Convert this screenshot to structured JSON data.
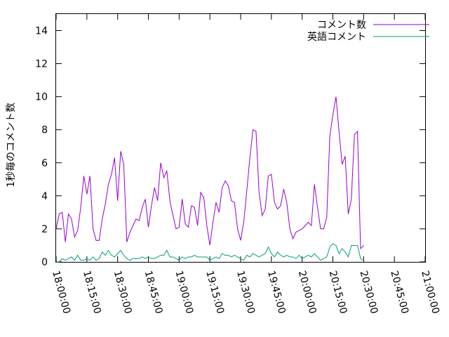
{
  "chart_data": {
    "type": "line",
    "ylabel": "1秒毎のコメント数",
    "ylim": [
      0,
      15
    ],
    "yticks": [
      0,
      2,
      4,
      6,
      8,
      10,
      12,
      14
    ],
    "xlim": [
      "18:00:00",
      "21:00:00"
    ],
    "xticks": [
      "18:00:00",
      "18:15:00",
      "18:30:00",
      "18:45:00",
      "19:00:00",
      "19:15:00",
      "19:30:00",
      "19:45:00",
      "20:00:00",
      "20:15:00",
      "20:30:00",
      "20:45:00",
      "21:00:00"
    ],
    "legend_position": "top-right",
    "grid": false,
    "x_step_minutes": 1.5,
    "series": [
      {
        "name": "コメント数",
        "color": "#9400d3",
        "values": [
          2.0,
          2.9,
          3.0,
          1.2,
          2.9,
          2.6,
          1.5,
          1.9,
          3.3,
          5.2,
          4.1,
          5.2,
          2.0,
          1.3,
          1.3,
          2.6,
          3.5,
          4.7,
          5.3,
          6.3,
          3.7,
          6.7,
          5.9,
          1.2,
          1.8,
          2.2,
          2.6,
          2.5,
          3.3,
          3.8,
          2.1,
          3.4,
          4.5,
          3.7,
          6.0,
          5.1,
          5.5,
          3.7,
          2.8,
          2.0,
          2.1,
          3.8,
          2.3,
          2.1,
          3.4,
          3.3,
          2.2,
          4.2,
          3.9,
          2.2,
          1.0,
          2.4,
          3.6,
          3.0,
          4.5,
          4.9,
          4.6,
          3.7,
          3.6,
          2.0,
          1.3,
          2.4,
          4.3,
          6.3,
          8.0,
          7.9,
          4.2,
          2.8,
          3.2,
          5.2,
          5.3,
          3.6,
          3.2,
          3.4,
          4.4,
          3.6,
          2.0,
          1.4,
          1.8,
          1.9,
          2.0,
          2.2,
          2.4,
          2.2,
          4.7,
          3.3,
          2.0,
          2.0,
          2.7,
          7.6,
          8.9,
          10.0,
          7.9,
          5.9,
          6.4,
          2.9,
          3.8,
          7.7,
          7.9,
          0.8,
          1.0
        ]
      },
      {
        "name": "英語コメント",
        "color": "#009e73",
        "values": [
          0.0,
          0.0,
          0.2,
          0.1,
          0.2,
          0.3,
          0.1,
          0.4,
          0.1,
          0.1,
          0.2,
          0.1,
          0.3,
          0.1,
          0.2,
          0.6,
          0.4,
          0.7,
          0.4,
          0.3,
          0.5,
          0.7,
          0.4,
          0.2,
          0.1,
          0.2,
          0.2,
          0.2,
          0.3,
          0.2,
          0.3,
          0.2,
          0.2,
          0.3,
          0.4,
          0.4,
          0.7,
          0.3,
          0.3,
          0.2,
          0.1,
          0.3,
          0.2,
          0.3,
          0.3,
          0.4,
          0.3,
          0.3,
          0.3,
          0.3,
          0.1,
          0.2,
          0.3,
          0.2,
          0.5,
          0.4,
          0.4,
          0.3,
          0.4,
          0.3,
          0.2,
          0.1,
          0.4,
          0.3,
          0.5,
          0.4,
          0.3,
          0.4,
          0.5,
          0.9,
          0.5,
          0.3,
          0.6,
          0.4,
          0.3,
          0.4,
          0.3,
          0.3,
          0.2,
          0.4,
          0.2,
          0.3,
          0.4,
          0.3,
          0.5,
          0.3,
          0.1,
          0.2,
          0.3,
          0.9,
          1.1,
          1.0,
          0.5,
          0.8,
          0.6,
          0.3,
          1.0,
          1.0,
          1.0,
          0.2,
          0.1
        ]
      }
    ]
  }
}
